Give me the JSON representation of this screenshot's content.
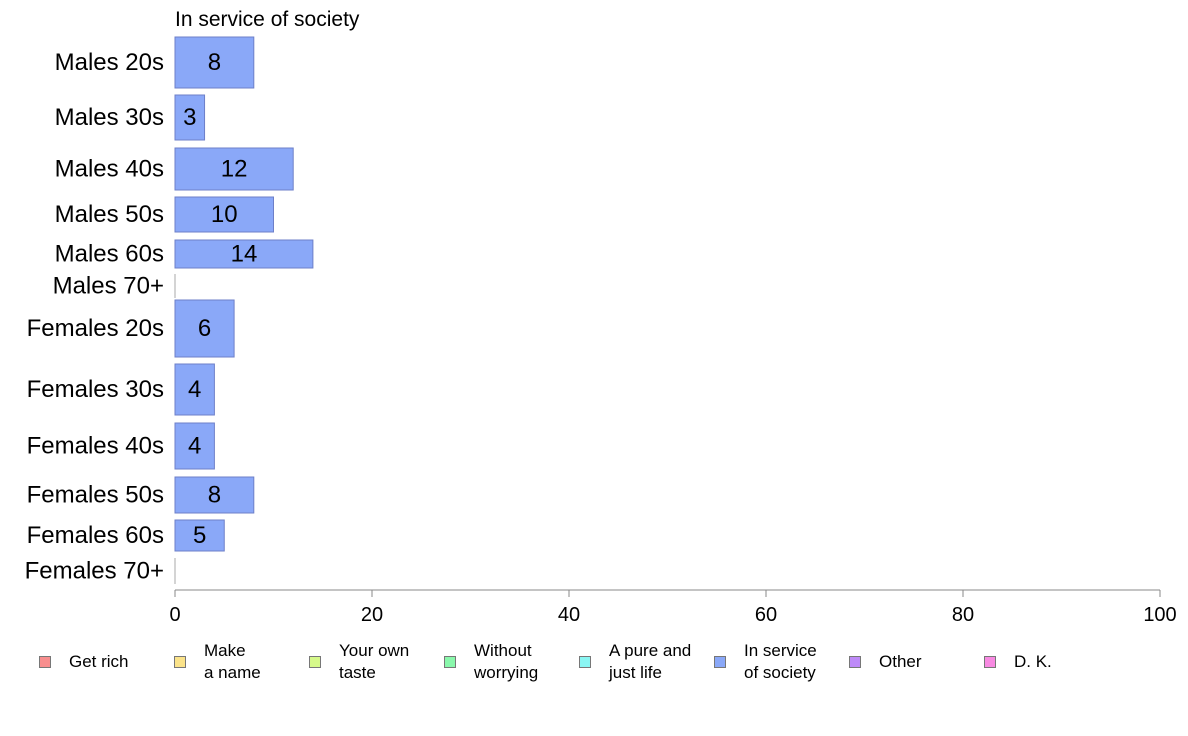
{
  "chart_data": {
    "type": "bar",
    "orientation": "horizontal",
    "title": "In service of society",
    "categories": [
      "Males 20s",
      "Males 30s",
      "Males 40s",
      "Males 50s",
      "Males 60s",
      "Males 70+",
      "Females 20s",
      "Females 30s",
      "Females 40s",
      "Females 50s",
      "Females 60s",
      "Females 70+"
    ],
    "values": [
      8,
      3,
      12,
      10,
      14,
      0,
      6,
      4,
      4,
      8,
      5,
      0
    ],
    "data_labels": [
      "8",
      "3",
      "12",
      "10",
      "14",
      "",
      "6",
      "4",
      "4",
      "8",
      "5",
      ""
    ],
    "xlim": [
      0,
      100
    ],
    "xticks": [
      "0",
      "20",
      "40",
      "60",
      "80",
      "100"
    ],
    "grid": false,
    "bar_color": "#8aa8f8",
    "bar_edge_color": "#6d7fc8",
    "legend": {
      "placement": "bottom",
      "items": [
        {
          "label": "Get rich",
          "color": "#f88e8e"
        },
        {
          "label": "Make\na name",
          "color": "#fbe38a"
        },
        {
          "label": "Your own\ntaste",
          "color": "#d6f98a"
        },
        {
          "label": "Without\nworrying",
          "color": "#8af8ac"
        },
        {
          "label": "A pure and\njust life",
          "color": "#8af6f3"
        },
        {
          "label": "In service\nof society",
          "color": "#8aa8f8"
        },
        {
          "label": "Other",
          "color": "#be8af8"
        },
        {
          "label": "D. K.",
          "color": "#f88ae2"
        }
      ]
    }
  }
}
